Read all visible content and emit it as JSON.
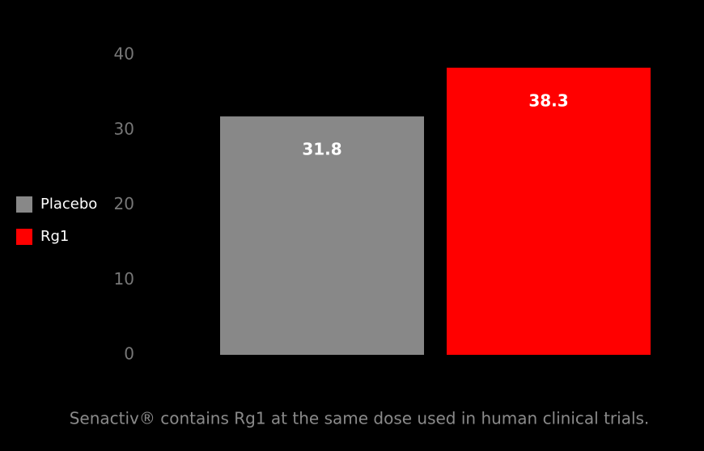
{
  "chart_data": {
    "type": "bar",
    "caption": "Senactiv® contains Rg1 at the same dose used in human clinical trials.",
    "categories": [
      null
    ],
    "series": [
      {
        "name": "Placebo",
        "color": "#888888",
        "values": [
          31.8
        ]
      },
      {
        "name": "Rg1",
        "color": "#ff0000",
        "values": [
          38.3
        ]
      }
    ],
    "ylim": [
      0,
      40
    ],
    "yticks": [
      0,
      10,
      20,
      30,
      40
    ],
    "grid": false,
    "legend": "left"
  }
}
